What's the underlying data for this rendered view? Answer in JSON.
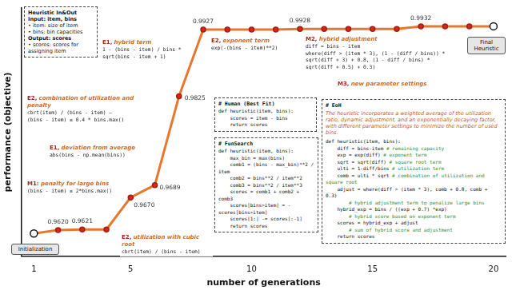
{
  "chart_data": {
    "type": "line",
    "x_label": "number of generations",
    "y_label": "performance (objective)",
    "x": [
      1,
      2,
      3,
      4,
      5,
      6,
      7,
      8,
      9,
      10,
      11,
      12,
      13,
      14,
      15,
      16,
      17,
      18,
      19,
      20
    ],
    "values": [
      0.9615,
      0.962,
      0.9621,
      0.9621,
      0.967,
      0.9689,
      0.9825,
      0.9927,
      0.9927,
      0.9927,
      0.9927,
      0.9928,
      0.9928,
      0.9928,
      0.9928,
      0.9928,
      0.9932,
      0.9932,
      0.9932,
      0.9932
    ],
    "value_labels": [
      null,
      "0.9620",
      "0.9621",
      null,
      "0.9670",
      "0.9689",
      "0.9825",
      "0.9927",
      null,
      null,
      null,
      "0.9928",
      null,
      null,
      null,
      null,
      "0.9932",
      null,
      null,
      null
    ],
    "color": "#e8772e",
    "marker": "circle",
    "xlim": [
      0.5,
      20.5
    ],
    "xticks": [
      1,
      5,
      10,
      15,
      20
    ],
    "ylim": [
      0.958,
      0.996
    ],
    "tick_labels": "x",
    "grid": false,
    "start_label": "Initialization",
    "end_label": "Final Heuristic",
    "annotations": [
      {
        "tag": "M1:",
        "title": "penalty for large bins",
        "code": [
          "(bins - item) ≤ 2*bins.max()"
        ]
      },
      {
        "tag": "E2,",
        "title": "utilization with cubic root",
        "code": [
          "cbrt(item) / (bins - item)"
        ]
      },
      {
        "tag": "E1,",
        "title": "deviation from average",
        "code": [
          "abs(bins - np.mean(bins))"
        ]
      },
      {
        "tag": "E2,",
        "title": "combination of utilization and penalty",
        "code": [
          "cbrt(item) / (bins - item) –",
          "(bins - item) ≤ 0.4 * bins.max()"
        ]
      },
      {
        "tag": "E1,",
        "title": "hybrid term",
        "code": [
          "1 - (bins - item) / bins *",
          "sqrt(bins - item + 1)"
        ]
      },
      {
        "tag": "E2,",
        "title": "exponent term",
        "code": [
          "exp(-(bins - item)**2)"
        ]
      },
      {
        "tag": "M2,",
        "title": "hybrid adjustment",
        "code": [
          "diff = bins - item",
          "where(diff > (item * 3), (1 - (diff / bins)) *",
          "sqrt(diff + 3) + 0.8, (1 - diff / bins) *",
          "sqrt(diff + 0.5) + 0.3)"
        ]
      },
      {
        "tag": "M3,",
        "title": "new parameter settings",
        "code": []
      }
    ],
    "in_out": {
      "title": "Heuristic In&Out",
      "lines": [
        "Input: item, bins",
        "• item: size of item",
        "• bins: bin capacities",
        "Output: scores",
        "• scores: scores for assigning item"
      ]
    },
    "human": {
      "title": "# Human (Best Fit)",
      "code": [
        "def heuristic(item, bins):",
        "    scores = item - bins",
        "    return scores"
      ]
    },
    "funsearch": {
      "title": "# FunSearch",
      "code": [
        "def heuristic(item, bins):",
        "    max_bin = max(bins)",
        "    comb1 = (bins - max_bin)**2 / item",
        "    comb2 = bins**2 / item**2",
        "    comb3 = bins**2 / item**3",
        "    scores = comb1 + comb2 + comb3",
        "    scores[bins>item] = -scores[bins>item]",
        "    scores[1:] -= scores[:-1]",
        "    return scores"
      ]
    },
    "eoh": {
      "title": "# EoH",
      "description": "The heuristic incorporates a weighted average of the utilization ratio, dynamic adjustment, and an exponentially decaying factor, with different parameter settings to minimize the number of used bins.",
      "code": [
        {
          "code": "def heuristic(item, bins):"
        },
        {
          "code": "    diff = bins-item",
          "comment": "# remaining capacity"
        },
        {
          "code": "    exp = exp(diff)",
          "comment": "# exponent term"
        },
        {
          "code": "    sqrt = sqrt(diff)",
          "comment": "# square root term"
        },
        {
          "code": "    ulti = 1-diff/bins",
          "comment": "# utilization term"
        },
        {
          "code": "    comb = ulti * sqrt",
          "comment": "# combination of utilization and square root"
        },
        {
          "code": "    adjust = where(diff > (item * 3), comb + 0.8, comb + 0.3)"
        },
        {
          "comment": "        # hybrid adjustment term to penalize large bins"
        },
        {
          "code": "    hybrid_exp = bins / ((exp + 0.7) *exp)"
        },
        {
          "comment": "        # hybrid score based on exponent term"
        },
        {
          "code": "    scores = hybrid_exp + adjust"
        },
        {
          "comment": "        # sum of hybrid score and adjustment"
        },
        {
          "code": "    return scores"
        }
      ]
    }
  }
}
